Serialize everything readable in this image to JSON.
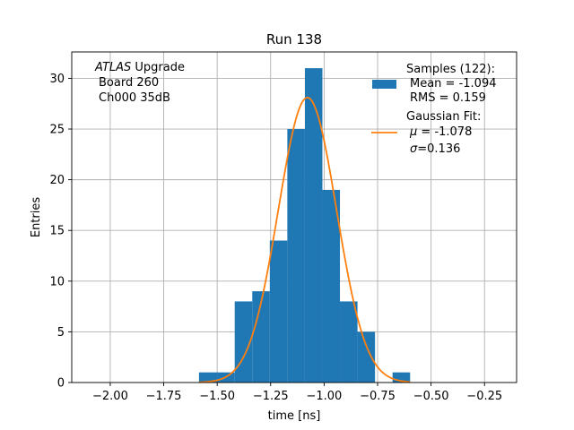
{
  "chart_data": {
    "type": "bar",
    "title": "Run 138",
    "xlabel": "time [ns]",
    "ylabel": "Entries",
    "xlim": [
      -2.18,
      -0.1
    ],
    "ylim": [
      0,
      32.6
    ],
    "grid": true,
    "xticks": [
      -2.0,
      -1.75,
      -1.5,
      -1.25,
      -1.0,
      -0.75,
      -0.5,
      -0.25
    ],
    "xtick_labels": [
      "−2.00",
      "−1.75",
      "−1.50",
      "−1.25",
      "−1.00",
      "−0.75",
      "−0.50",
      "−0.25"
    ],
    "yticks": [
      0,
      5,
      10,
      15,
      20,
      25,
      30
    ],
    "ytick_labels": [
      "0",
      "5",
      "10",
      "15",
      "20",
      "25",
      "30"
    ],
    "histogram": {
      "name": "Samples (122):",
      "color": "#1f77b4",
      "bin_edges": [
        -1.585,
        -1.5,
        -1.418,
        -1.336,
        -1.254,
        -1.172,
        -1.09,
        -1.008,
        -0.926,
        -0.844,
        -0.762,
        -0.68,
        -0.598
      ],
      "counts": [
        1,
        1,
        8,
        9,
        14,
        25,
        31,
        19,
        8,
        5,
        0,
        1
      ]
    },
    "fit": {
      "name": "Gaussian Fit:",
      "color": "#ff7f0e",
      "mu": -1.078,
      "sigma": 0.136,
      "peak": 28.1,
      "x_range": [
        -1.585,
        -0.598
      ]
    },
    "legend": {
      "placement": "top-right",
      "samples_label": "Samples (122):",
      "samples_mean": "Mean = -1.094",
      "samples_rms": "RMS = 0.159",
      "fit_label": "Gaussian Fit:",
      "fit_mu_symbol": "μ",
      "fit_mu_value": " = -1.078",
      "fit_sigma_symbol": "σ",
      "fit_sigma_value": "=0.136"
    },
    "annotation": {
      "italic": "ATLAS",
      "line1_rest": " Upgrade",
      "line2": "Board 260",
      "line3": "Ch000 35dB"
    }
  }
}
